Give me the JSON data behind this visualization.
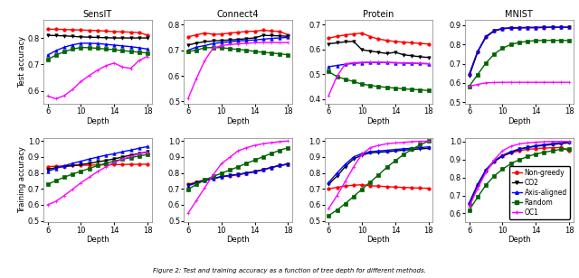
{
  "depths": [
    6,
    7,
    8,
    9,
    10,
    11,
    12,
    13,
    14,
    15,
    16,
    17,
    18
  ],
  "colors": {
    "non_greedy": "#ff0000",
    "co2": "#000000",
    "axis_aligned": "#0000ff",
    "random": "#006400",
    "oc1": "#ff00ff"
  },
  "markers": {
    "non_greedy": "o",
    "co2": "v",
    "axis_aligned": "^",
    "random": "s",
    "oc1": "+"
  },
  "markersize": 2.5,
  "linewidth": 1.0,
  "legend_labels": [
    "Non-greedy",
    "CO2",
    "Axis-aligned",
    "Random",
    "OC1"
  ],
  "test": {
    "SensIT": {
      "title": "SensIT",
      "ylabel": "Test accuracy",
      "ylim": [
        0.55,
        0.87
      ],
      "yticks": [
        0.6,
        0.7,
        0.8
      ],
      "non_greedy": [
        0.833,
        0.833,
        0.832,
        0.831,
        0.83,
        0.829,
        0.828,
        0.826,
        0.824,
        0.823,
        0.822,
        0.82,
        0.811
      ],
      "co2": [
        0.81,
        0.809,
        0.808,
        0.806,
        0.804,
        0.803,
        0.802,
        0.801,
        0.8,
        0.8,
        0.8,
        0.8,
        0.8
      ],
      "axis_aligned": [
        0.735,
        0.752,
        0.765,
        0.774,
        0.78,
        0.78,
        0.779,
        0.776,
        0.773,
        0.77,
        0.767,
        0.763,
        0.758
      ],
      "random": [
        0.718,
        0.735,
        0.748,
        0.758,
        0.764,
        0.763,
        0.761,
        0.758,
        0.756,
        0.752,
        0.749,
        0.746,
        0.743
      ],
      "oc1": [
        0.58,
        0.57,
        0.582,
        0.605,
        0.635,
        0.658,
        0.678,
        0.695,
        0.705,
        0.69,
        0.685,
        0.715,
        0.73
      ]
    },
    "Connect4": {
      "title": "Connect4",
      "ylabel": "",
      "ylim": [
        0.49,
        0.82
      ],
      "yticks": [
        0.5,
        0.6,
        0.7,
        0.8
      ],
      "non_greedy": [
        0.752,
        0.76,
        0.767,
        0.762,
        0.763,
        0.767,
        0.77,
        0.773,
        0.774,
        0.778,
        0.775,
        0.773,
        0.76
      ],
      "co2": [
        0.72,
        0.728,
        0.733,
        0.736,
        0.738,
        0.74,
        0.742,
        0.745,
        0.748,
        0.758,
        0.757,
        0.756,
        0.754
      ],
      "axis_aligned": [
        0.7,
        0.712,
        0.718,
        0.726,
        0.73,
        0.733,
        0.736,
        0.738,
        0.74,
        0.743,
        0.746,
        0.748,
        0.75
      ],
      "random": [
        0.695,
        0.7,
        0.71,
        0.71,
        0.71,
        0.706,
        0.703,
        0.7,
        0.695,
        0.692,
        0.689,
        0.686,
        0.682
      ],
      "oc1": [
        0.512,
        0.59,
        0.66,
        0.708,
        0.718,
        0.722,
        0.725,
        0.727,
        0.729,
        0.73,
        0.73,
        0.73,
        0.73
      ]
    },
    "Protein": {
      "title": "Protein",
      "ylabel": "",
      "ylim": [
        0.38,
        0.72
      ],
      "yticks": [
        0.4,
        0.5,
        0.6,
        0.7
      ],
      "non_greedy": [
        0.645,
        0.652,
        0.658,
        0.662,
        0.665,
        0.651,
        0.641,
        0.636,
        0.631,
        0.629,
        0.626,
        0.624,
        0.621
      ],
      "co2": [
        0.622,
        0.626,
        0.63,
        0.632,
        0.598,
        0.593,
        0.588,
        0.583,
        0.588,
        0.578,
        0.574,
        0.57,
        0.567
      ],
      "axis_aligned": [
        0.53,
        0.535,
        0.54,
        0.543,
        0.546,
        0.547,
        0.547,
        0.547,
        0.546,
        0.545,
        0.544,
        0.543,
        0.542
      ],
      "random": [
        0.51,
        0.49,
        0.48,
        0.47,
        0.46,
        0.455,
        0.45,
        0.447,
        0.444,
        0.441,
        0.439,
        0.437,
        0.434
      ],
      "oc1": [
        0.415,
        0.492,
        0.542,
        0.546,
        0.548,
        0.548,
        0.548,
        0.547,
        0.546,
        0.545,
        0.544,
        0.543,
        0.542
      ]
    },
    "MNIST": {
      "title": "MNIST",
      "ylabel": "",
      "ylim": [
        0.49,
        0.93
      ],
      "yticks": [
        0.5,
        0.6,
        0.7,
        0.8,
        0.9
      ],
      "non_greedy": [
        0.645,
        0.762,
        0.84,
        0.872,
        0.883,
        0.886,
        0.887,
        0.888,
        0.888,
        0.888,
        0.889,
        0.889,
        0.889
      ],
      "co2": [
        0.635,
        0.76,
        0.838,
        0.87,
        0.882,
        0.885,
        0.887,
        0.888,
        0.888,
        0.889,
        0.889,
        0.889,
        0.889
      ],
      "axis_aligned": [
        0.645,
        0.762,
        0.842,
        0.872,
        0.883,
        0.886,
        0.887,
        0.888,
        0.888,
        0.889,
        0.889,
        0.889,
        0.889
      ],
      "random": [
        0.582,
        0.643,
        0.703,
        0.75,
        0.78,
        0.8,
        0.81,
        0.816,
        0.82,
        0.821,
        0.821,
        0.821,
        0.82
      ],
      "oc1": [
        0.582,
        0.592,
        0.6,
        0.602,
        0.603,
        0.603,
        0.603,
        0.603,
        0.603,
        0.603,
        0.603,
        0.603,
        0.603
      ]
    }
  },
  "train": {
    "SensIT": {
      "title": "SensIT",
      "ylabel": "Training accuracy",
      "ylim": [
        0.49,
        1.02
      ],
      "yticks": [
        0.5,
        0.6,
        0.7,
        0.8,
        0.9,
        1.0
      ],
      "non_greedy": [
        0.84,
        0.842,
        0.844,
        0.846,
        0.848,
        0.849,
        0.85,
        0.851,
        0.852,
        0.853,
        0.854,
        0.854,
        0.855
      ],
      "co2": [
        0.823,
        0.833,
        0.84,
        0.846,
        0.852,
        0.86,
        0.869,
        0.878,
        0.888,
        0.9,
        0.912,
        0.922,
        0.932
      ],
      "axis_aligned": [
        0.81,
        0.828,
        0.845,
        0.86,
        0.873,
        0.887,
        0.899,
        0.911,
        0.92,
        0.933,
        0.943,
        0.955,
        0.965
      ],
      "random": [
        0.728,
        0.752,
        0.773,
        0.793,
        0.81,
        0.828,
        0.846,
        0.86,
        0.874,
        0.886,
        0.896,
        0.906,
        0.916
      ],
      "oc1": [
        0.6,
        0.622,
        0.658,
        0.698,
        0.738,
        0.773,
        0.808,
        0.838,
        0.866,
        0.886,
        0.904,
        0.92,
        0.93
      ]
    },
    "Connect4": {
      "title": "Connect4",
      "ylabel": "",
      "ylim": [
        0.49,
        1.02
      ],
      "yticks": [
        0.5,
        0.6,
        0.7,
        0.8,
        0.9,
        1.0
      ],
      "non_greedy": [
        0.728,
        0.743,
        0.758,
        0.768,
        0.776,
        0.783,
        0.789,
        0.798,
        0.807,
        0.82,
        0.834,
        0.847,
        0.855
      ],
      "co2": [
        0.724,
        0.739,
        0.754,
        0.766,
        0.776,
        0.784,
        0.791,
        0.8,
        0.809,
        0.82,
        0.834,
        0.847,
        0.855
      ],
      "axis_aligned": [
        0.72,
        0.737,
        0.752,
        0.764,
        0.776,
        0.784,
        0.791,
        0.798,
        0.807,
        0.82,
        0.834,
        0.847,
        0.855
      ],
      "random": [
        0.698,
        0.728,
        0.756,
        0.778,
        0.798,
        0.818,
        0.838,
        0.86,
        0.88,
        0.902,
        0.922,
        0.942,
        0.958
      ],
      "oc1": [
        0.548,
        0.628,
        0.708,
        0.788,
        0.858,
        0.898,
        0.938,
        0.958,
        0.973,
        0.983,
        0.99,
        0.996,
        1.0
      ]
    },
    "Protein": {
      "title": "Protein",
      "ylabel": "",
      "ylim": [
        0.49,
        1.02
      ],
      "yticks": [
        0.5,
        0.6,
        0.7,
        0.8,
        0.9,
        1.0
      ],
      "non_greedy": [
        0.7,
        0.71,
        0.718,
        0.723,
        0.726,
        0.72,
        0.717,
        0.714,
        0.711,
        0.709,
        0.707,
        0.705,
        0.704
      ],
      "co2": [
        0.73,
        0.78,
        0.84,
        0.888,
        0.912,
        0.926,
        0.93,
        0.933,
        0.938,
        0.943,
        0.947,
        0.951,
        0.954
      ],
      "axis_aligned": [
        0.74,
        0.8,
        0.855,
        0.9,
        0.922,
        0.933,
        0.938,
        0.942,
        0.947,
        0.951,
        0.955,
        0.959,
        0.963
      ],
      "random": [
        0.533,
        0.568,
        0.608,
        0.653,
        0.698,
        0.743,
        0.788,
        0.836,
        0.876,
        0.916,
        0.948,
        0.976,
        1.0
      ],
      "oc1": [
        0.578,
        0.658,
        0.748,
        0.838,
        0.918,
        0.958,
        0.973,
        0.983,
        0.988,
        0.992,
        0.996,
        0.998,
        1.0
      ]
    },
    "MNIST": {
      "title": "MNIST",
      "ylabel": "",
      "ylim": [
        0.55,
        1.02
      ],
      "yticks": [
        0.6,
        0.7,
        0.8,
        0.9,
        1.0
      ],
      "non_greedy": [
        0.658,
        0.758,
        0.838,
        0.888,
        0.918,
        0.936,
        0.948,
        0.956,
        0.96,
        0.963,
        0.965,
        0.966,
        0.948
      ],
      "co2": [
        0.648,
        0.756,
        0.838,
        0.888,
        0.92,
        0.94,
        0.956,
        0.966,
        0.973,
        0.978,
        0.983,
        0.988,
        0.993
      ],
      "axis_aligned": [
        0.658,
        0.761,
        0.843,
        0.893,
        0.923,
        0.943,
        0.958,
        0.968,
        0.976,
        0.982,
        0.988,
        0.994,
        0.999
      ],
      "random": [
        0.618,
        0.69,
        0.758,
        0.808,
        0.846,
        0.876,
        0.898,
        0.916,
        0.93,
        0.94,
        0.948,
        0.956,
        0.96
      ],
      "oc1": [
        0.638,
        0.738,
        0.828,
        0.898,
        0.948,
        0.973,
        0.986,
        0.992,
        0.996,
        0.998,
        1.0,
        1.0,
        1.0
      ]
    }
  },
  "caption": "Figure 2: Test and training accuracy as a function of tree depth for different methods.",
  "datasets": [
    "SensIT",
    "Connect4",
    "Protein",
    "MNIST"
  ]
}
